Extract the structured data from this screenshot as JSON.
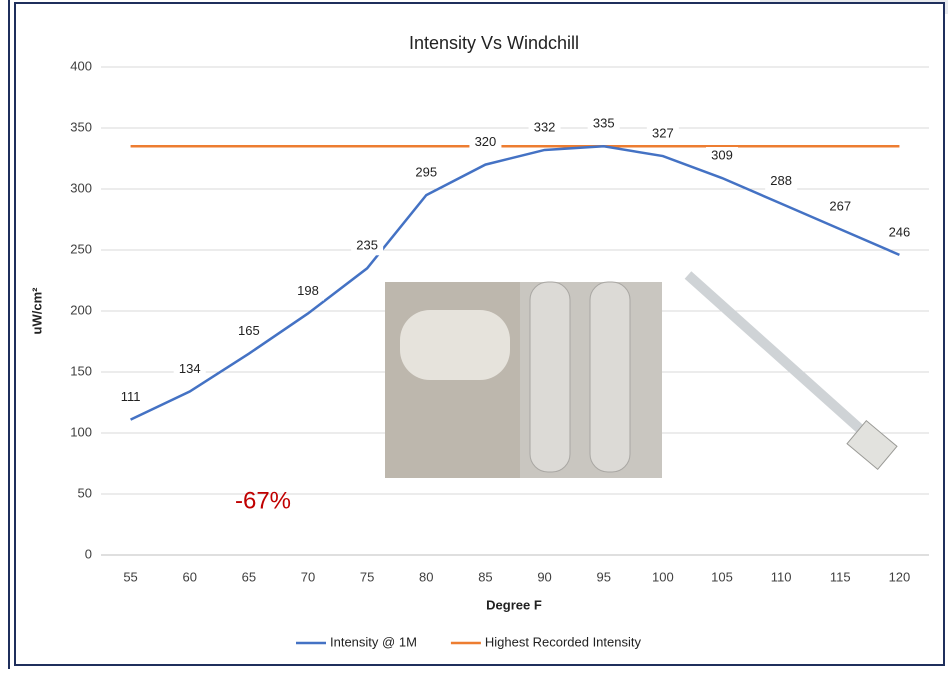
{
  "chart_data": {
    "type": "line",
    "title": "Intensity Vs Windchill",
    "x_label": "Degree F",
    "y_label": "uW/cm²",
    "categories": [
      "55",
      "60",
      "65",
      "70",
      "75",
      "80",
      "85",
      "90",
      "95",
      "100",
      "105",
      "110",
      "115",
      "120"
    ],
    "series": [
      {
        "name": "Intensity @ 1M",
        "color": "#4472c4",
        "values": [
          111,
          134,
          165,
          198,
          235,
          295,
          320,
          332,
          335,
          327,
          309,
          288,
          267,
          246
        ],
        "data_labels": true
      },
      {
        "name": "Highest Recorded Intensity",
        "color": "#ed7d31",
        "values": [
          335,
          335,
          335,
          335,
          335,
          335,
          335,
          335,
          335,
          335,
          335,
          335,
          335,
          335
        ],
        "data_labels": false
      }
    ],
    "ylim": [
      0,
      400
    ],
    "yticks": [
      0,
      50,
      100,
      150,
      200,
      250,
      300,
      350,
      400
    ],
    "grid": true,
    "annotation": "-67%",
    "legend": "bottom"
  }
}
